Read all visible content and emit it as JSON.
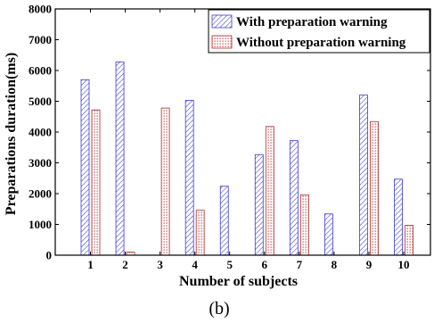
{
  "chart_data": {
    "type": "bar",
    "categories": [
      "1",
      "2",
      "3",
      "4",
      "5",
      "6",
      "7",
      "8",
      "9",
      "10"
    ],
    "series": [
      {
        "name": "With preparation warning",
        "values": [
          5700,
          6280,
          0,
          5030,
          2240,
          3270,
          3720,
          1340,
          5200,
          2470
        ],
        "color": "#3a3ad0",
        "pattern": "diagonal-hatch"
      },
      {
        "name": "Without preparation warning",
        "values": [
          4720,
          100,
          4780,
          1460,
          0,
          4180,
          1960,
          0,
          4340,
          970
        ],
        "color": "#b03030",
        "pattern": "dotted"
      }
    ],
    "xlabel": "Number of subjects",
    "ylabel": "Preparations duration(ms)",
    "ylim": [
      0,
      8000
    ],
    "yticks": [
      0,
      1000,
      2000,
      3000,
      4000,
      5000,
      6000,
      7000,
      8000
    ],
    "grid": false,
    "legend_position": "top-right",
    "caption": "(b)"
  }
}
